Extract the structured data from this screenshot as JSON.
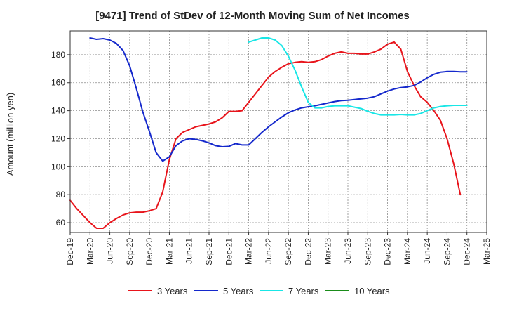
{
  "chart_data": {
    "type": "line",
    "title": "[9471]  Trend of StDev of 12-Month Moving Sum of Net Incomes",
    "xlabel": "",
    "ylabel": "Amount (million yen)",
    "ylim": [
      53,
      197
    ],
    "yticks": [
      60,
      80,
      100,
      120,
      140,
      160,
      180
    ],
    "xticks": [
      "Dec-19",
      "Mar-20",
      "Jun-20",
      "Sep-20",
      "Dec-20",
      "Mar-21",
      "Jun-21",
      "Sep-21",
      "Dec-21",
      "Mar-22",
      "Jun-22",
      "Sep-22",
      "Dec-22",
      "Mar-23",
      "Jun-23",
      "Sep-23",
      "Dec-23",
      "Mar-24",
      "Jun-24",
      "Sep-24",
      "Dec-24",
      "Mar-25"
    ],
    "x_start": "Dec-19",
    "x_step_months": 1,
    "grid": true,
    "legend_position": "bottom",
    "series": [
      {
        "name": "3 Years",
        "color": "#e8141b",
        "start_index": 0,
        "values": [
          76,
          70,
          65,
          60,
          56,
          56,
          60,
          63,
          65.5,
          67,
          67.5,
          67.5,
          68.5,
          70,
          82,
          105,
          120,
          124.5,
          126.5,
          128.5,
          129.5,
          130.5,
          132,
          135,
          139.5,
          139.5,
          140,
          146,
          152,
          158,
          164,
          168,
          171,
          173.5,
          174.5,
          175,
          174.5,
          175,
          176.5,
          179,
          181,
          182,
          181,
          181,
          180.5,
          180.5,
          182,
          184,
          187.5,
          189,
          184,
          168,
          158,
          150,
          146,
          140,
          133,
          120,
          102,
          80
        ]
      },
      {
        "name": "5 Years",
        "color": "#1428cc",
        "start_index": 3,
        "values": [
          192,
          191,
          191.5,
          190.5,
          188,
          183,
          172,
          156,
          139,
          125,
          110,
          104,
          107,
          115,
          118.5,
          120,
          119.5,
          118.5,
          117,
          115,
          114.2,
          114.5,
          116.5,
          115.5,
          115.5,
          120,
          124.5,
          128.5,
          132,
          135.5,
          138.5,
          140.5,
          142,
          142.8,
          143.5,
          144.5,
          145.5,
          146.5,
          147.2,
          147.5,
          148,
          148.5,
          149,
          150,
          152,
          154,
          155.5,
          156.5,
          157,
          158,
          160.5,
          163.5,
          166,
          167.5,
          168,
          168,
          167.8,
          167.8
        ]
      },
      {
        "name": "7 Years",
        "color": "#19e6e6",
        "start_index": 27,
        "values": [
          189,
          190.5,
          192,
          192,
          190.5,
          186.5,
          179,
          169,
          157,
          146,
          142,
          142,
          143,
          143.5,
          143.5,
          143.5,
          142.5,
          141.5,
          139.5,
          138,
          137,
          137,
          137,
          137.3,
          137,
          137,
          138,
          140,
          142,
          143,
          143.5,
          143.8,
          143.8,
          143.8
        ]
      },
      {
        "name": "10 Years",
        "color": "#1a8c1a",
        "start_index": 0,
        "values": []
      }
    ]
  }
}
